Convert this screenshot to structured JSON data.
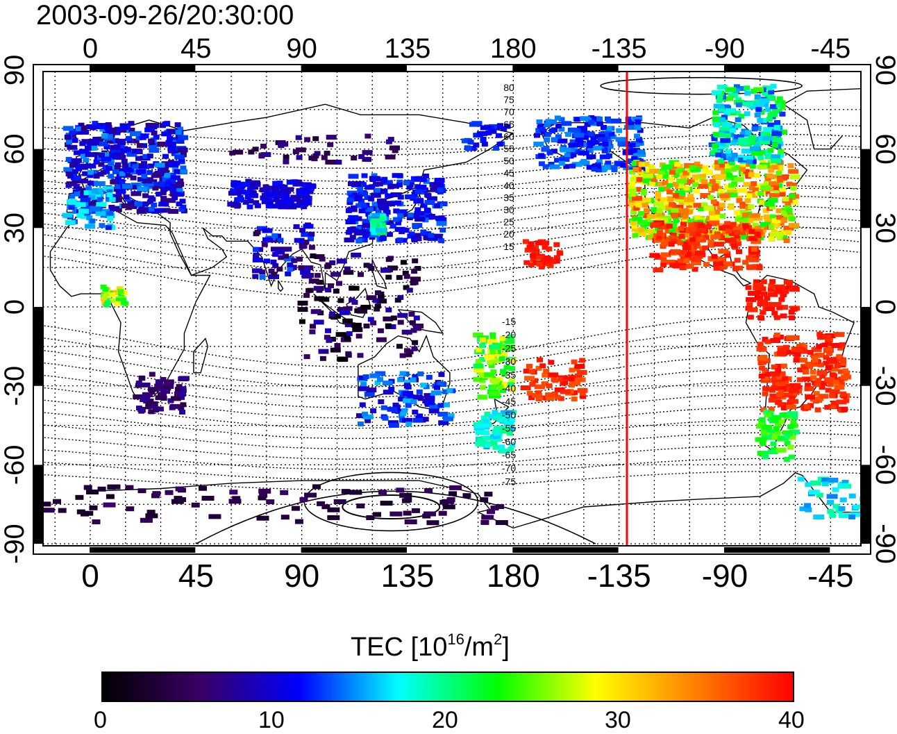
{
  "timestamp": "2003-09-26/20:30:00",
  "colorbar": {
    "title_prefix": "TEC  [10",
    "title_exp": "16",
    "title_mid": "/m",
    "title_exp2": "2",
    "title_suffix": "]",
    "min": 0,
    "max": 40,
    "tick_labels": [
      "0",
      "10",
      "20",
      "30",
      "40"
    ],
    "stops": [
      "#000000",
      "#3a0066",
      "#0000ff",
      "#00ffff",
      "#00ff00",
      "#ffff00",
      "#ff7f00",
      "#ff0000"
    ]
  },
  "map": {
    "lon_tick_labels": [
      "0",
      "45",
      "90",
      "135",
      "180",
      "-135",
      "-90",
      "-45"
    ],
    "lat_tick_labels": [
      "90",
      "60",
      "30",
      "0",
      "-30",
      "-60",
      "-90"
    ],
    "terminator_color": "#ff0000",
    "magnetic_latitude_labels_north": [
      "80",
      "75",
      "70",
      "65",
      "60",
      "55",
      "50",
      "45",
      "40",
      "35",
      "30",
      "25",
      "20",
      "15"
    ],
    "magnetic_latitude_labels_south": [
      "-15",
      "-20",
      "-25",
      "-30",
      "-35",
      "-40",
      "-45",
      "-50",
      "-55",
      "-60",
      "-65",
      "-70",
      "-75"
    ]
  }
}
